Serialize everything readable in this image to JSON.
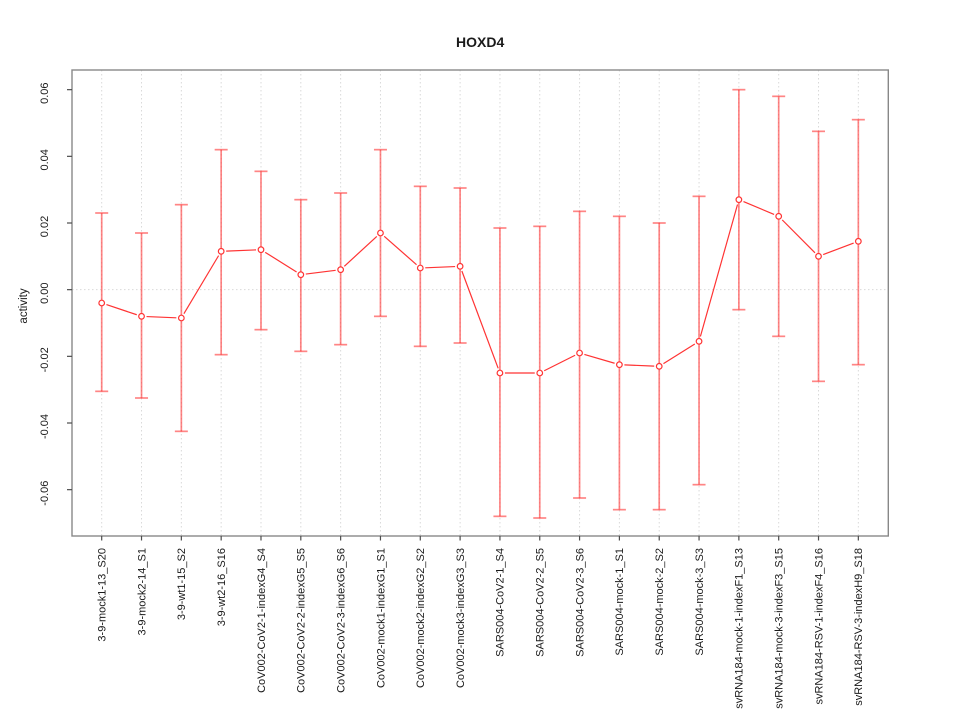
{
  "colors": {
    "series_red": "#ff3333",
    "errorbar_red": "rgba(255,51,51,0.60)",
    "grid_gray": "#d9d9d9",
    "box_gray": "#888888",
    "tick_gray": "#4d4d4d",
    "text_black": "#1a1a1a",
    "background": "#ffffff"
  },
  "chart_data": {
    "type": "line",
    "title": "HOXD4",
    "xlabel": "",
    "ylabel": "activity",
    "legend_position": "none",
    "grid": "vertical dotted gridline at each category; dotted horizontal line at y=0",
    "ylim": [
      -0.0739,
      0.0659
    ],
    "yticks": [
      -0.06,
      -0.04,
      -0.02,
      0.0,
      0.02,
      0.04,
      0.06
    ],
    "point_style": "open-circle with error bars",
    "categories": [
      "3-9-mock1-13_S20",
      "3-9-mock2-14_S1",
      "3-9-wt1-15_S2",
      "3-9-wt2-16_S16",
      "CoV002-CoV2-1-indexG4_S4",
      "CoV002-CoV2-2-indexG5_S5",
      "CoV002-CoV2-3-indexG6_S6",
      "CoV002-mock1-indexG1_S1",
      "CoV002-mock2-indexG2_S2",
      "CoV002-mock3-indexG3_S3",
      "SARS004-CoV2-1_S4",
      "SARS004-CoV2-2_S5",
      "SARS004-CoV2-3_S6",
      "SARS004-mock-1_S1",
      "SARS004-mock-2_S2",
      "SARS004-mock-3_S3",
      "svRNA184-mock-1-indexF1_S13",
      "svRNA184-mock-3-indexF3_S15",
      "svRNA184-RSV-1-indexF4_S16",
      "svRNA184-RSV-3-indexH9_S18"
    ],
    "series": [
      {
        "name": "activity",
        "values": [
          -0.004,
          -0.008,
          -0.0085,
          0.0115,
          0.012,
          0.0045,
          0.006,
          0.017,
          0.0065,
          0.007,
          -0.025,
          -0.025,
          -0.019,
          -0.0225,
          -0.023,
          -0.0155,
          0.027,
          0.022,
          0.01,
          0.0145
        ],
        "err_upper": [
          0.023,
          0.017,
          0.0255,
          0.042,
          0.0355,
          0.027,
          0.029,
          0.042,
          0.031,
          0.0305,
          0.0185,
          0.019,
          0.0235,
          0.022,
          0.02,
          0.028,
          0.06,
          0.058,
          0.0475,
          0.051
        ],
        "err_lower": [
          -0.0305,
          -0.0325,
          -0.0425,
          -0.0195,
          -0.012,
          -0.0185,
          -0.0165,
          -0.008,
          -0.017,
          -0.016,
          -0.068,
          -0.0685,
          -0.0625,
          -0.066,
          -0.066,
          -0.0585,
          -0.006,
          -0.014,
          -0.0275,
          -0.0225
        ]
      }
    ]
  }
}
